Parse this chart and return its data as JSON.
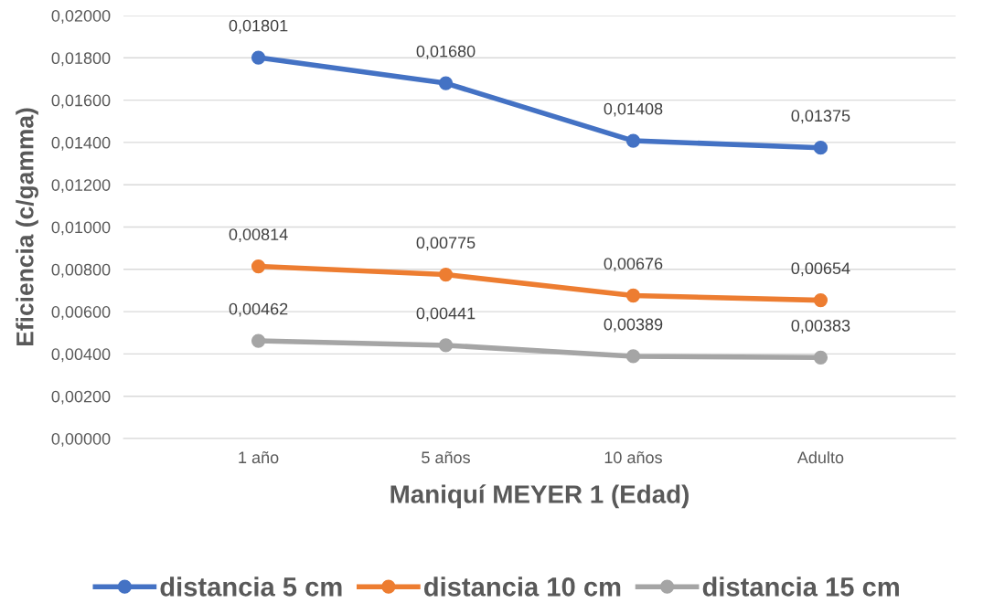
{
  "chart_data": {
    "type": "line",
    "xlabel": "Maniquí MEYER 1 (Edad)",
    "ylabel": "Eficiencia (c/gamma)",
    "categories": [
      "1 año",
      "5 años",
      "10 años",
      "Adulto"
    ],
    "series": [
      {
        "name": "distancia 5 cm",
        "color": "#4472c4",
        "values": [
          0.01801,
          0.0168,
          0.01408,
          0.01375
        ],
        "value_labels": [
          "0,01801",
          "0,01680",
          "0,01408",
          "0,01375"
        ]
      },
      {
        "name": "distancia 10 cm",
        "color": "#ed7d31",
        "values": [
          0.00814,
          0.00775,
          0.00676,
          0.00654
        ],
        "value_labels": [
          "0,00814",
          "0,00775",
          "0,00676",
          "0,00654"
        ]
      },
      {
        "name": "distancia 15 cm",
        "color": "#a5a5a5",
        "values": [
          0.00462,
          0.00441,
          0.00389,
          0.00383
        ],
        "value_labels": [
          "0,00462",
          "0,00441",
          "0,00389",
          "0,00383"
        ]
      }
    ],
    "ylim": [
      0,
      0.02
    ],
    "yticks": [
      {
        "value": 0,
        "label": "0,00000"
      },
      {
        "value": 0.002,
        "label": "0,00200"
      },
      {
        "value": 0.004,
        "label": "0,00400"
      },
      {
        "value": 0.006,
        "label": "0,00600"
      },
      {
        "value": 0.008,
        "label": "0,00800"
      },
      {
        "value": 0.01,
        "label": "0,01000"
      },
      {
        "value": 0.012,
        "label": "0,01200"
      },
      {
        "value": 0.014,
        "label": "0,01400"
      },
      {
        "value": 0.016,
        "label": "0,01600"
      },
      {
        "value": 0.018,
        "label": "0,01800"
      },
      {
        "value": 0.02,
        "label": "0,02000"
      }
    ],
    "grid": "y",
    "legend": "bottom",
    "marker": "circle",
    "line_style": "solid"
  }
}
